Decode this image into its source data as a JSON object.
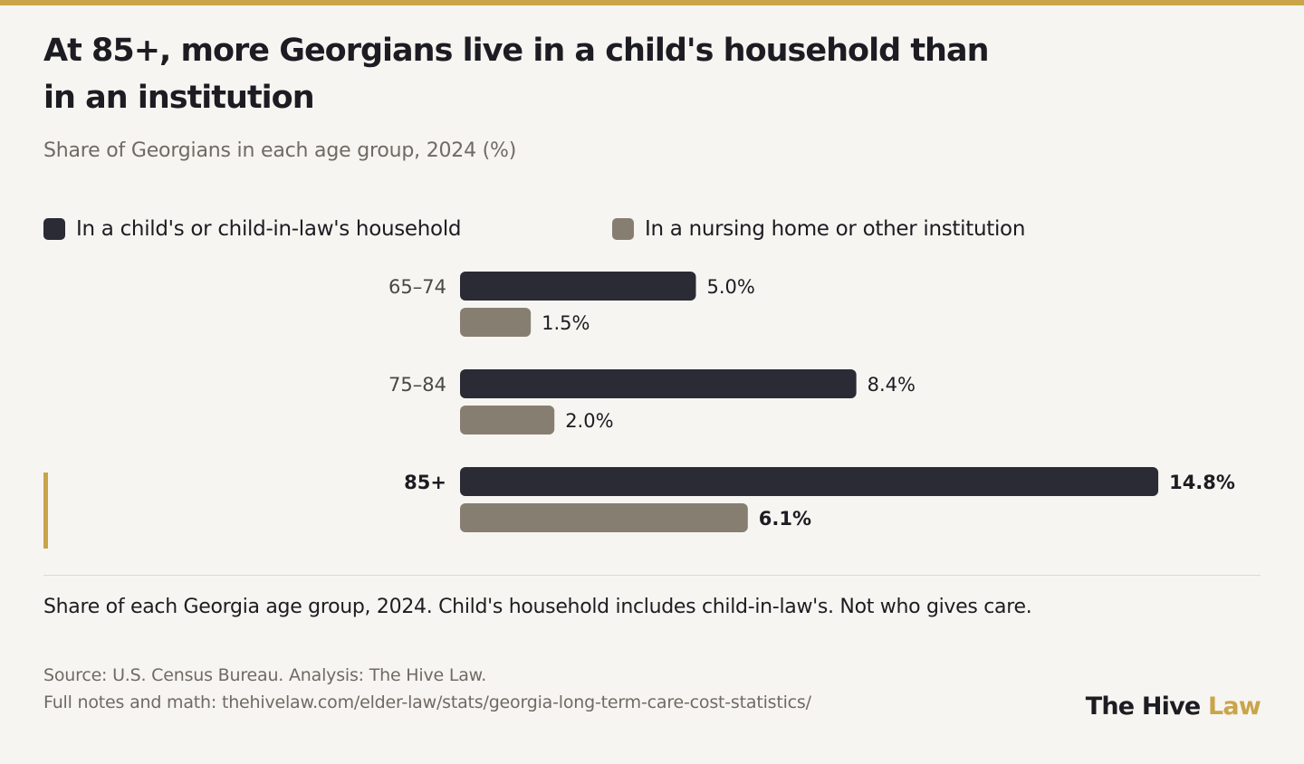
{
  "colors": {
    "accent": "#c9a54a",
    "series_child": "#2a2b34",
    "series_institution": "#877e72",
    "background": "#f7f5f1",
    "text": "#1c1c22",
    "muted_text": "#6f6a64"
  },
  "header": {
    "title": "At 85+, more Georgians live in a child's household than in an institution",
    "subtitle": "Share of Georgians in each age group, 2024 (%)"
  },
  "legend": [
    {
      "label": "In a child's or child-in-law's household"
    },
    {
      "label": "In a nursing home or other institution"
    }
  ],
  "chart_data": {
    "type": "bar",
    "orientation": "horizontal",
    "categories": [
      "65–74",
      "75–84",
      "85+"
    ],
    "series": [
      {
        "name": "In a child's or child-in-law's household",
        "values": [
          5.0,
          8.4,
          14.8
        ],
        "labels": [
          "5.0%",
          "8.4%",
          "14.8%"
        ]
      },
      {
        "name": "In a nursing home or other institution",
        "values": [
          1.5,
          2.0,
          6.1
        ],
        "labels": [
          "1.5%",
          "2.0%",
          "6.1%"
        ]
      }
    ],
    "highlighted_category": "85+",
    "title": "At 85+, more Georgians live in a child's household than in an institution",
    "subtitle": "Share of Georgians in each age group, 2024 (%)",
    "xlabel": "",
    "ylabel": "",
    "grid": false,
    "legend_position": "top-left"
  },
  "footer": {
    "note": "Share of each Georgia age group, 2024. Child's household includes child-in-law's. Not who gives care.",
    "source": "Source: U.S. Census Bureau. Analysis: The Hive Law.",
    "notes_link": "Full notes and math: thehivelaw.com/elder-law/stats/georgia-long-term-care-cost-statistics/",
    "brand_name": "The Hive",
    "brand_suffix": "Law"
  }
}
